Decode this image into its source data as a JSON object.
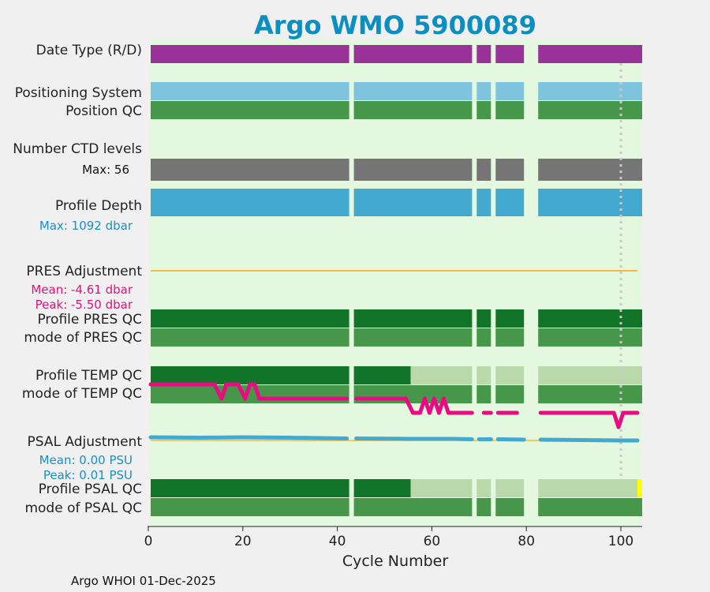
{
  "chart_data": {
    "type": "timeline",
    "title": "Argo WMO 5900089",
    "xlabel": "Cycle Number",
    "xlim": [
      0,
      104.5
    ],
    "xticks": [
      0,
      20,
      40,
      60,
      80,
      100
    ],
    "xtick_labels": [
      "0",
      "20",
      "40",
      "60",
      "80",
      "100"
    ],
    "footer": "Argo WHOI 01-Dec-2025",
    "row_labels": {
      "date_type": "Date Type (R/D)",
      "positioning_system": "Positioning System",
      "position_qc": "Position QC",
      "num_levels": "Number CTD levels",
      "profile_depth": "Profile Depth",
      "pres_adjustment": "PRES Adjustment",
      "profile_pres_qc": "Profile PRES QC",
      "mode_pres_qc": "mode of PRES QC",
      "profile_temp_qc": "Profile TEMP QC",
      "mode_temp_qc": "mode of TEMP QC",
      "psal_adjustment": "PSAL Adjustment",
      "profile_psal_qc": "Profile PSAL QC",
      "mode_psal_qc": "mode of PSAL QC"
    },
    "stats": {
      "levels_max": "Max: 56",
      "depth_max": "Max: 1092 dbar",
      "pres_mean": "Mean: -4.61 dbar",
      "pres_peak": "Peak: -5.50 dbar",
      "psal_mean": "Mean: 0.00 PSU",
      "psal_peak": "Peak: 0.01 PSU"
    },
    "cycle_segments": [
      [
        0.5,
        42.5
      ],
      [
        43.5,
        68.5
      ],
      [
        69.5,
        72.5
      ],
      [
        73.5,
        79.5
      ],
      [
        82.5,
        104.5
      ]
    ],
    "temp_qc_change_cycle": 55.5,
    "psal_qc_change_cycle": 55.5,
    "psal_flag_cycle": 104,
    "highlight_cycle": 100,
    "pres_adjust_line": [
      0.5,
      103.5
    ],
    "temp_trace": [
      [
        0.5,
        0
      ],
      [
        14,
        0
      ],
      [
        15.5,
        1
      ],
      [
        16.5,
        0
      ],
      [
        19,
        0
      ],
      [
        20.5,
        1
      ],
      [
        21.5,
        0
      ],
      [
        22.5,
        0
      ],
      [
        23.5,
        1
      ],
      [
        42,
        1
      ],
      [
        44,
        1
      ],
      [
        54.5,
        1
      ],
      [
        56,
        2
      ],
      [
        57.5,
        2
      ],
      [
        58.5,
        1
      ],
      [
        59.5,
        2
      ],
      [
        60.5,
        1
      ],
      [
        61.5,
        2
      ],
      [
        62.5,
        1
      ],
      [
        63.5,
        2
      ],
      [
        64.5,
        2
      ],
      [
        68.5,
        2
      ],
      [
        71,
        2
      ],
      [
        72.5,
        2
      ],
      [
        74,
        2
      ],
      [
        75.5,
        2
      ],
      [
        78,
        2
      ],
      [
        80,
        2
      ],
      [
        83,
        2
      ],
      [
        98.5,
        2
      ],
      [
        99.5,
        3
      ],
      [
        100.5,
        2
      ],
      [
        103.5,
        2
      ]
    ],
    "psal_trace": [
      [
        0.5,
        0.0
      ],
      [
        10,
        0.1
      ],
      [
        20,
        0.0
      ],
      [
        30,
        0.1
      ],
      [
        42,
        0.3
      ],
      [
        44,
        0.3
      ],
      [
        55,
        0.4
      ],
      [
        65,
        0.4
      ],
      [
        68.5,
        0.5
      ],
      [
        70,
        0.5
      ],
      [
        72.5,
        0.5
      ],
      [
        74,
        0.5
      ],
      [
        79.5,
        0.6
      ],
      [
        83,
        0.6
      ],
      [
        92,
        0.7
      ],
      [
        100,
        0.8
      ],
      [
        103.5,
        0.8
      ]
    ],
    "colors": {
      "date_type": "#993399",
      "positioning_system": "#7ec4df",
      "position_qc": "#47974a",
      "num_levels": "#757575",
      "profile_depth": "#44a9cf",
      "pres_adjust": "#f5b942",
      "qc_good_dark": "#127429",
      "qc_good": "#47974a",
      "qc_probable": "#bad9aa",
      "temp_trace": "#ea0a82",
      "psal_trace": "#44a9cf",
      "psal_flag": "#ffff00",
      "background": "#e4f8e0",
      "title": "#0a8fc0",
      "stat_blue": "#1a8fc3",
      "stat_pink": "#e0137e"
    }
  }
}
